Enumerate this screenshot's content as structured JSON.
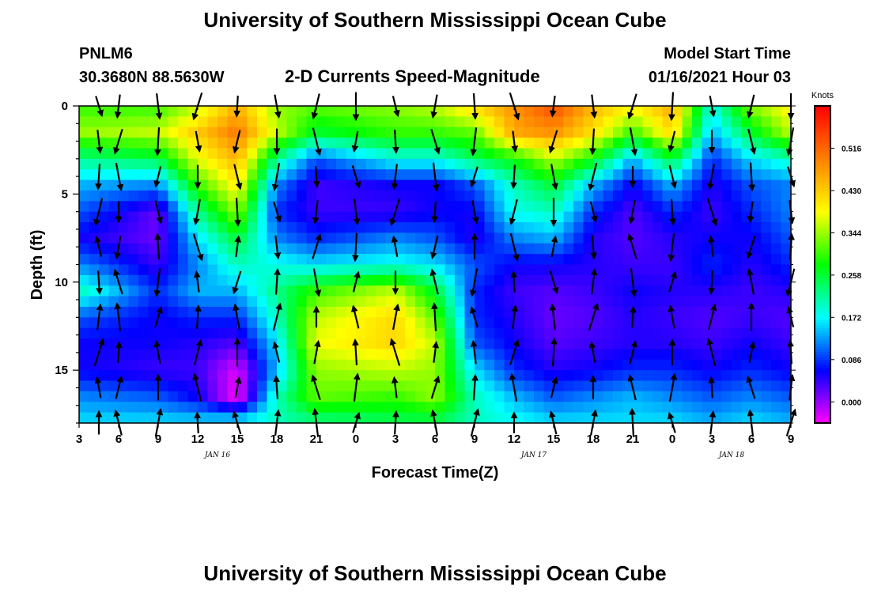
{
  "header": {
    "title": "University of Southern Mississippi Ocean Cube",
    "station": "PNLM6",
    "coords": "30.3680N 88.5630W",
    "subtitle": "2-D Currents Speed-Magnitude",
    "model_label": "Model Start Time",
    "model_time": "01/16/2021 Hour 03",
    "footer_title": "University of Southern Mississippi Ocean Cube"
  },
  "chart_data": {
    "type": "heatmap",
    "title": "2-D Currents Speed-Magnitude",
    "xlabel": "Forecast Time(Z)",
    "ylabel": "Depth (ft)",
    "x_hours_from_start": [
      0,
      54
    ],
    "x_tick_labels": [
      "3",
      "6",
      "9",
      "12",
      "15",
      "18",
      "21",
      "0",
      "3",
      "6",
      "9",
      "12",
      "15",
      "18",
      "21",
      "0",
      "3",
      "6",
      "9"
    ],
    "date_labels": [
      {
        "label": "JAN 16",
        "at_tick": "12"
      },
      {
        "label": "JAN 17",
        "at_tick": "12"
      },
      {
        "label": "JAN 18",
        "at_tick": "3"
      }
    ],
    "ylim": [
      0,
      18
    ],
    "y_ticks": [
      0,
      5,
      10,
      15
    ],
    "colorbar": {
      "unit": "Knots",
      "ticks": [
        0.0,
        0.086,
        0.172,
        0.258,
        0.344,
        0.43,
        0.516
      ],
      "tick_labels": [
        "0.000",
        "0.086",
        "0.172",
        "0.258",
        "0.344",
        "0.430",
        "0.516"
      ],
      "range": [
        -0.043,
        0.602
      ],
      "colors": [
        "#ff00ff",
        "#8000ff",
        "#0000ff",
        "#0080ff",
        "#00ffff",
        "#00ff80",
        "#00ff00",
        "#80ff00",
        "#ffff00",
        "#ffc000",
        "#ff8000",
        "#ff4000",
        "#ff0000"
      ]
    },
    "speed_grid": {
      "depth_levels_ft": [
        0,
        1.5,
        3,
        4.5,
        6,
        7.5,
        9,
        10.5,
        12,
        13.5,
        15,
        16.5,
        18
      ],
      "x_hours": [
        0,
        6,
        9,
        12,
        15,
        18,
        24,
        27,
        30,
        33,
        36,
        39,
        42,
        45,
        48,
        51,
        54
      ],
      "values": [
        [
          0.3,
          0.3,
          0.36,
          0.45,
          0.34,
          0.32,
          0.34,
          0.36,
          0.42,
          0.48,
          0.54,
          0.45,
          0.4,
          0.46,
          0.18,
          0.34,
          0.4
        ],
        [
          0.34,
          0.36,
          0.43,
          0.5,
          0.36,
          0.26,
          0.3,
          0.3,
          0.32,
          0.46,
          0.48,
          0.41,
          0.3,
          0.42,
          0.14,
          0.26,
          0.36
        ],
        [
          0.22,
          0.25,
          0.38,
          0.45,
          0.22,
          0.1,
          0.18,
          0.18,
          0.24,
          0.28,
          0.36,
          0.28,
          0.14,
          0.26,
          0.08,
          0.16,
          0.2
        ],
        [
          0.14,
          0.12,
          0.3,
          0.4,
          0.12,
          0.04,
          0.06,
          0.06,
          0.1,
          0.2,
          0.26,
          0.14,
          0.06,
          0.14,
          0.05,
          0.1,
          0.12
        ],
        [
          0.1,
          0.02,
          0.22,
          0.34,
          0.08,
          0.04,
          0.04,
          0.06,
          0.06,
          0.18,
          0.2,
          0.08,
          0.03,
          0.08,
          0.04,
          0.08,
          0.12
        ],
        [
          0.06,
          0.02,
          0.16,
          0.26,
          0.12,
          0.08,
          0.12,
          0.1,
          0.05,
          0.12,
          0.14,
          0.05,
          0.03,
          0.05,
          0.06,
          0.06,
          0.1
        ],
        [
          0.12,
          0.04,
          0.12,
          0.2,
          0.18,
          0.16,
          0.18,
          0.16,
          0.1,
          0.06,
          0.06,
          0.05,
          0.04,
          0.04,
          0.08,
          0.05,
          0.08
        ],
        [
          0.2,
          0.08,
          0.14,
          0.14,
          0.22,
          0.3,
          0.36,
          0.26,
          0.08,
          0.04,
          0.03,
          0.04,
          0.06,
          0.05,
          0.05,
          0.04,
          0.05
        ],
        [
          0.1,
          0.06,
          0.08,
          0.08,
          0.2,
          0.36,
          0.42,
          0.32,
          0.08,
          0.05,
          0.02,
          0.03,
          0.05,
          0.04,
          0.03,
          0.04,
          0.03
        ],
        [
          0.06,
          0.06,
          0.05,
          0.03,
          0.16,
          0.38,
          0.42,
          0.36,
          0.1,
          0.06,
          0.03,
          0.04,
          0.05,
          0.05,
          0.04,
          0.06,
          0.04
        ],
        [
          0.06,
          0.04,
          0.04,
          -0.03,
          0.14,
          0.34,
          0.36,
          0.34,
          0.16,
          0.08,
          0.05,
          0.06,
          0.08,
          0.08,
          0.06,
          0.08,
          0.06
        ],
        [
          0.12,
          0.1,
          0.06,
          -0.04,
          0.2,
          0.32,
          0.3,
          0.34,
          0.2,
          0.14,
          0.1,
          0.12,
          0.14,
          0.12,
          0.1,
          0.12,
          0.1
        ],
        [
          0.16,
          0.16,
          0.16,
          0.18,
          0.2,
          0.22,
          0.24,
          0.24,
          0.2,
          0.18,
          0.16,
          0.16,
          0.16,
          0.16,
          0.14,
          0.16,
          0.14
        ]
      ]
    },
    "vectors_note": "Current direction arrows on a 3-hour by ~1.5-ft grid; predominantly southward near surface and northward near bottom.",
    "vectors": {
      "x_hours": [
        1.5,
        3,
        6,
        9,
        12,
        15,
        18,
        21,
        24,
        27,
        30,
        33,
        36,
        39,
        42,
        45,
        48,
        51,
        54
      ],
      "depth_levels_ft": [
        0,
        2,
        4,
        6,
        8,
        10,
        12,
        14,
        16,
        18
      ]
    }
  }
}
